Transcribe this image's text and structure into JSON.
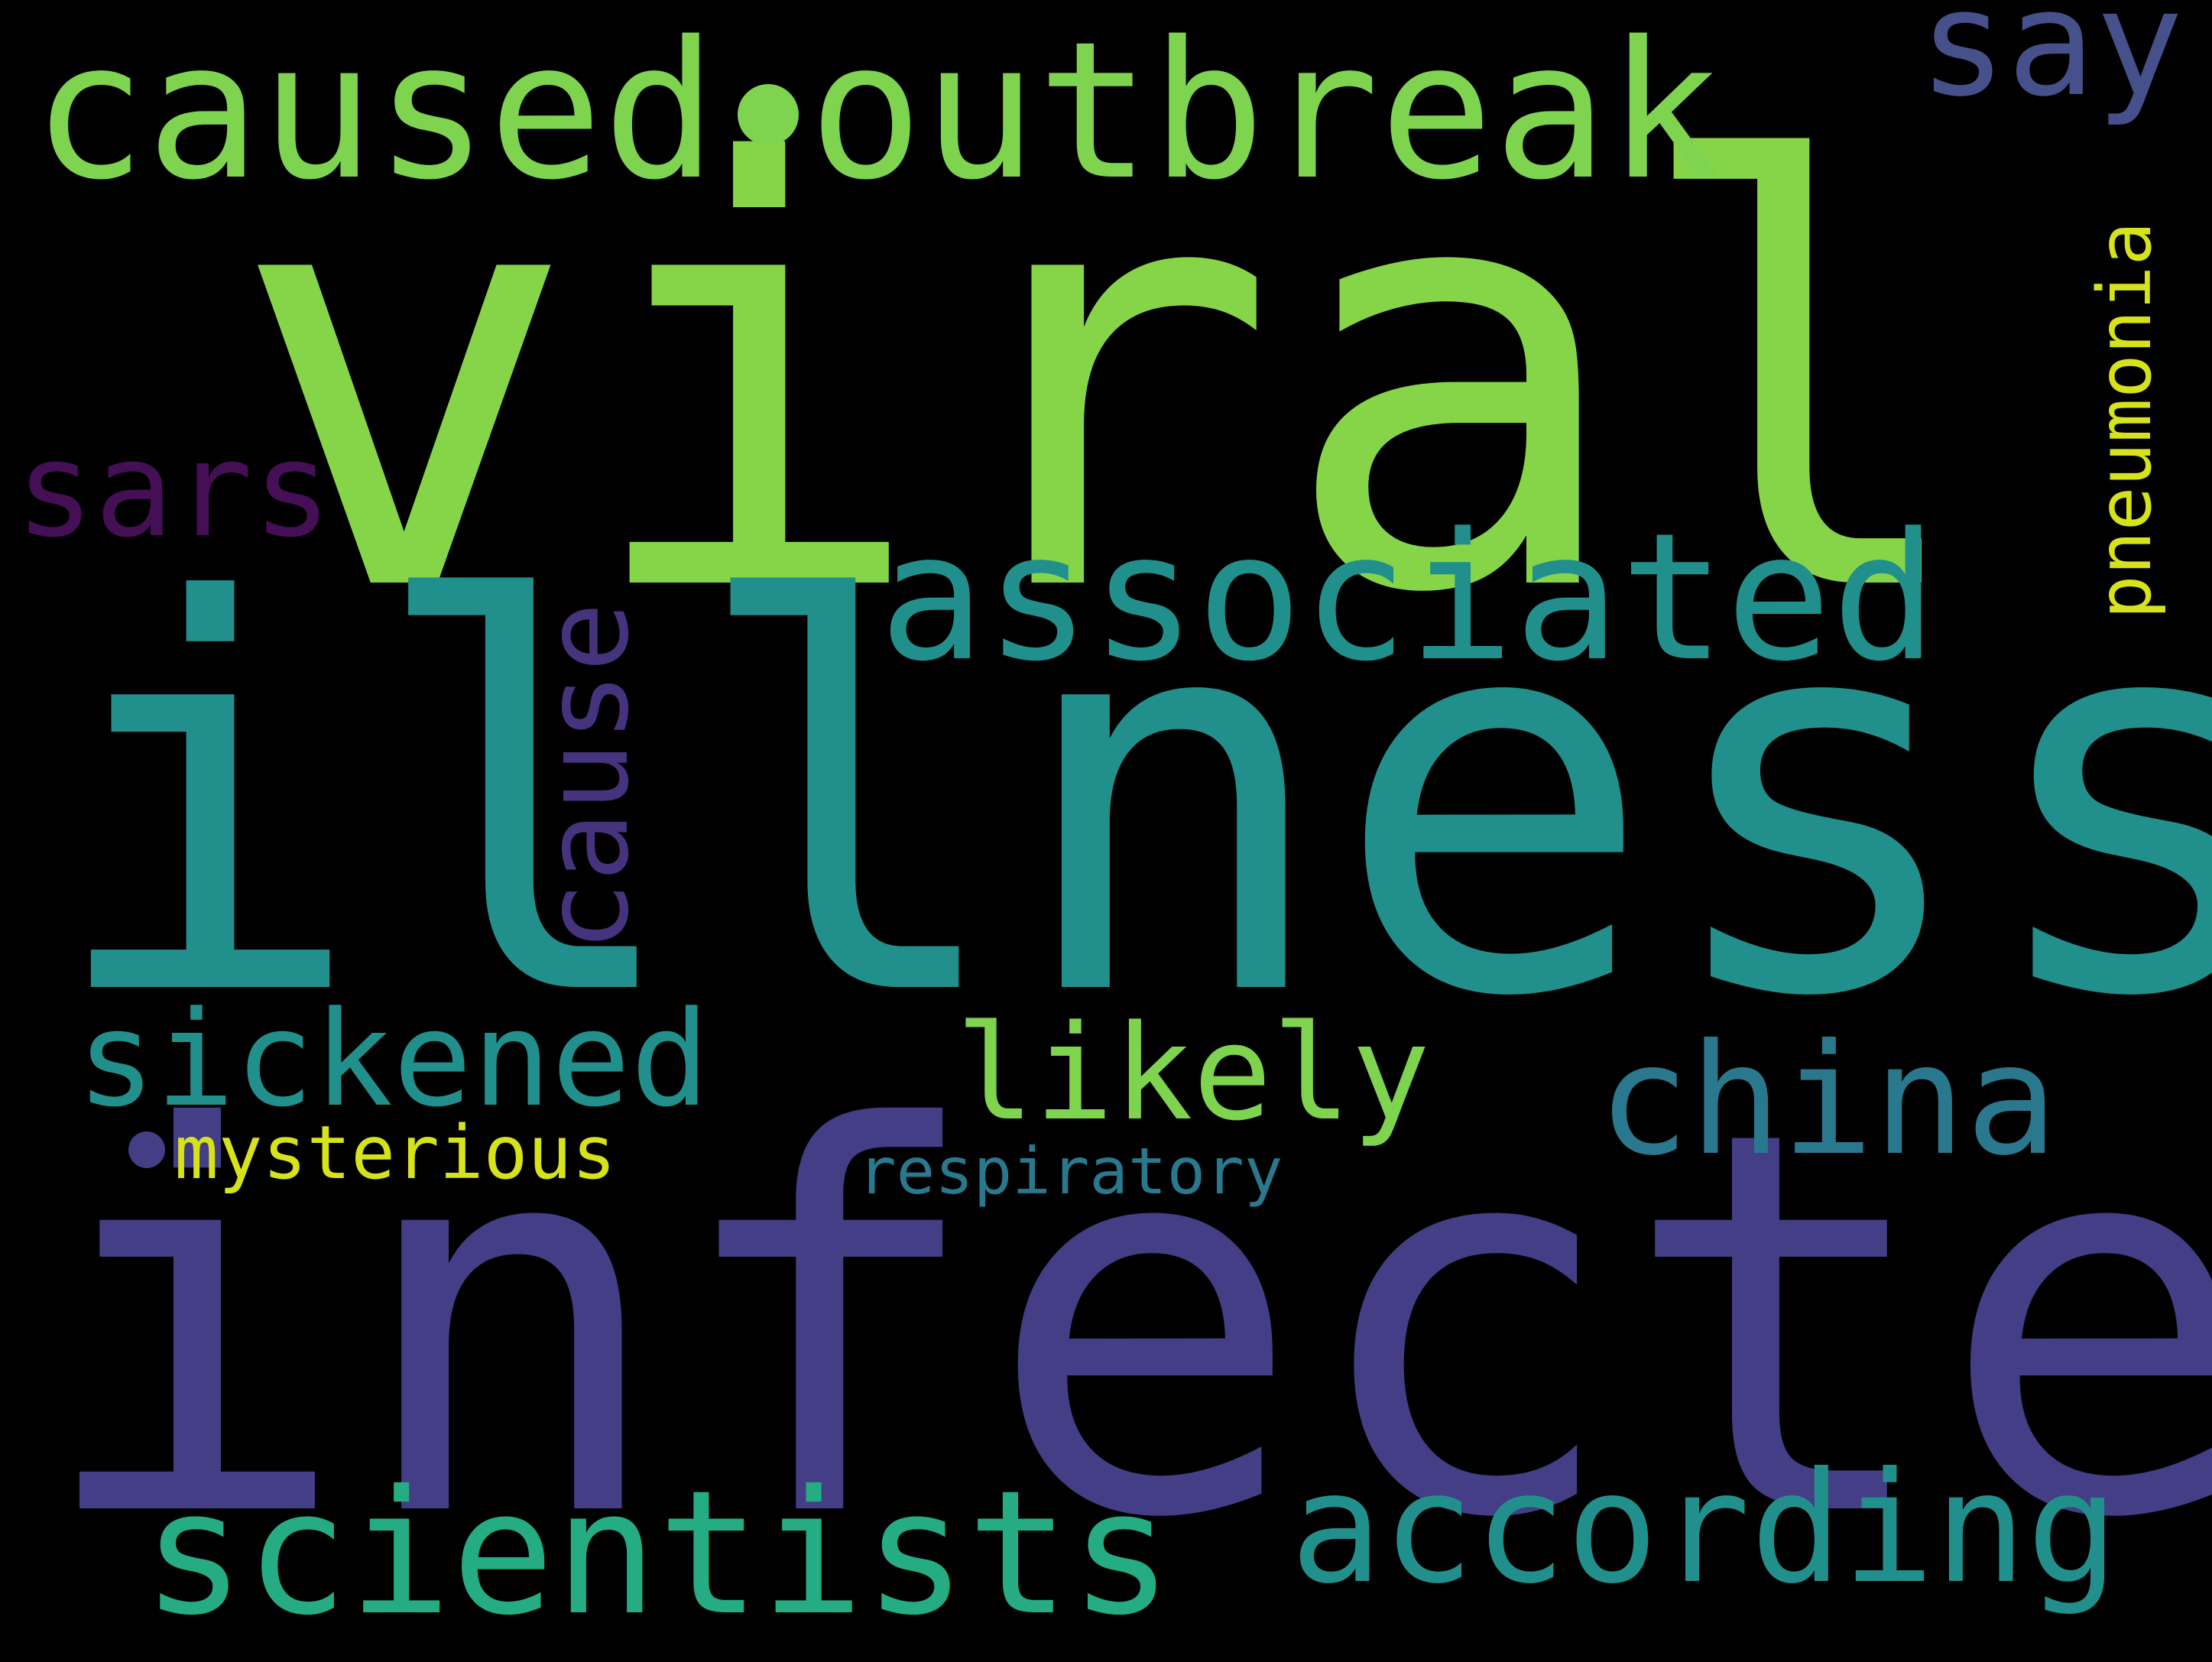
{
  "palette": {
    "background": "#000000",
    "bright_green": "#86D549",
    "lime_green": "#7ED34F",
    "yellow": "#D6E21A",
    "teal": "#21908D",
    "teal_green": "#25AC82",
    "teal_blue": "#2A788E",
    "indigo": "#433E85",
    "slate_indigo": "#46508A",
    "purple": "#46337E",
    "deep_purple": "#440F55"
  },
  "words": {
    "viral": "viral",
    "illness": "illness",
    "infected": "infected",
    "caused": "caused",
    "outbreak": "outbreak",
    "say": "say",
    "associated": "associated",
    "sars": "sars",
    "cause": "cause",
    "pneumonia": "pneumonia",
    "sickened": "sickened",
    "likely": "likely",
    "china": "china",
    "mysterious": "mysterious",
    "respiratory": "respiratory",
    "scientists": "scientists",
    "according": "according"
  }
}
